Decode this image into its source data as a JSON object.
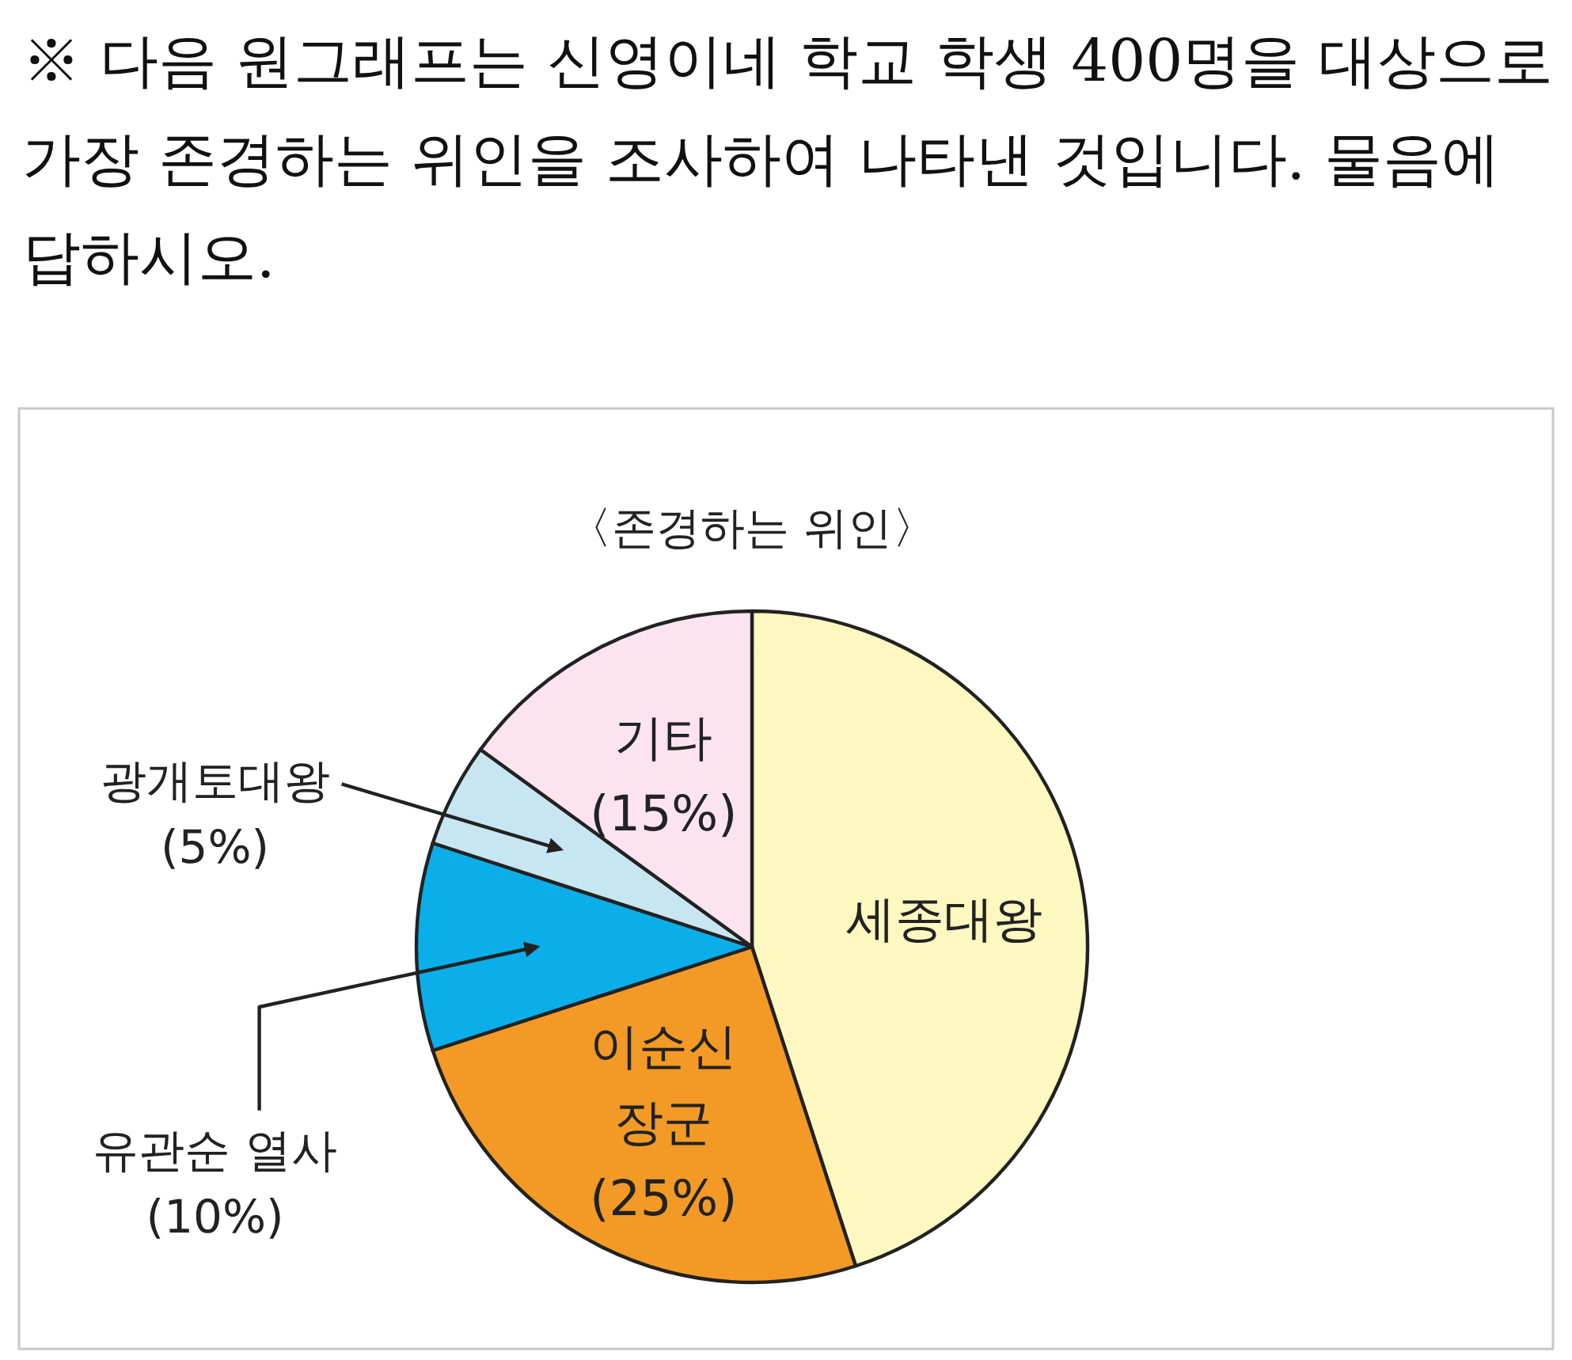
{
  "chart_data": {
    "type": "pie",
    "title": "※ 다음 원그래프는 신영이네 학교 학생 400명을 대상으로 가장 존경하는 위인을 조사하여 나타낸 것입니다. 물음에 답하시오.",
    "subtitle": "〈존경하는 위인〉",
    "categories": [
      "세종대왕",
      "이순신 장군",
      "유관순 열사",
      "광개토대왕",
      "기타"
    ],
    "values": [
      45,
      25,
      10,
      5,
      15
    ],
    "value_labels": [
      null,
      "(25%)",
      "(10%)",
      "(5%)",
      "(15%)"
    ],
    "colors": [
      "#fdf7c0",
      "#f39a26",
      "#0aaee8",
      "#c8e6f2",
      "#fce4ee"
    ]
  }
}
